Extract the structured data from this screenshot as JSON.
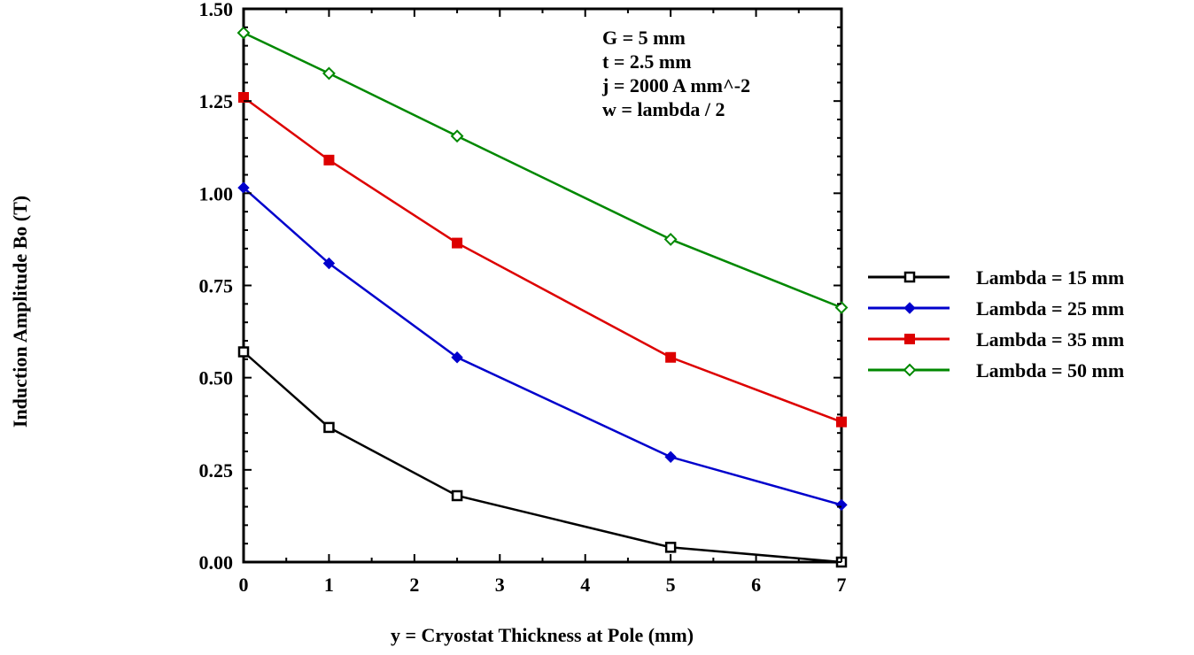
{
  "chart_data": {
    "type": "line",
    "xlabel": "y = Cryostat Thickness at Pole (mm)",
    "ylabel": "Induction Amplitude Bo (T)",
    "xlim": [
      0,
      7
    ],
    "ylim": [
      0,
      1.5
    ],
    "x_ticks": [
      "0",
      "1",
      "2",
      "3",
      "4",
      "5",
      "6",
      "7"
    ],
    "y_ticks": [
      "0.00",
      "0.25",
      "0.50",
      "0.75",
      "1.00",
      "1.25",
      "1.50"
    ],
    "x": [
      0,
      1,
      2.5,
      5,
      7
    ],
    "series": [
      {
        "name": "Lambda = 15 mm",
        "color": "#000000",
        "marker": "open-square",
        "values": [
          0.57,
          0.365,
          0.18,
          0.04,
          0.0
        ]
      },
      {
        "name": "Lambda = 25 mm",
        "color": "#0000cc",
        "marker": "filled-diamond",
        "values": [
          1.015,
          0.81,
          0.555,
          0.285,
          0.155
        ]
      },
      {
        "name": "Lambda = 35 mm",
        "color": "#dd0000",
        "marker": "filled-square",
        "values": [
          1.26,
          1.09,
          0.865,
          0.555,
          0.38
        ]
      },
      {
        "name": "Lambda = 50 mm",
        "color": "#008800",
        "marker": "open-diamond",
        "values": [
          1.435,
          1.325,
          1.155,
          0.875,
          0.69
        ]
      }
    ],
    "annotation": [
      "G = 5 mm",
      "t = 2.5 mm",
      "j = 2000 A mm^-2",
      "w = lambda / 2"
    ],
    "legend_position": "right",
    "grid": false
  }
}
